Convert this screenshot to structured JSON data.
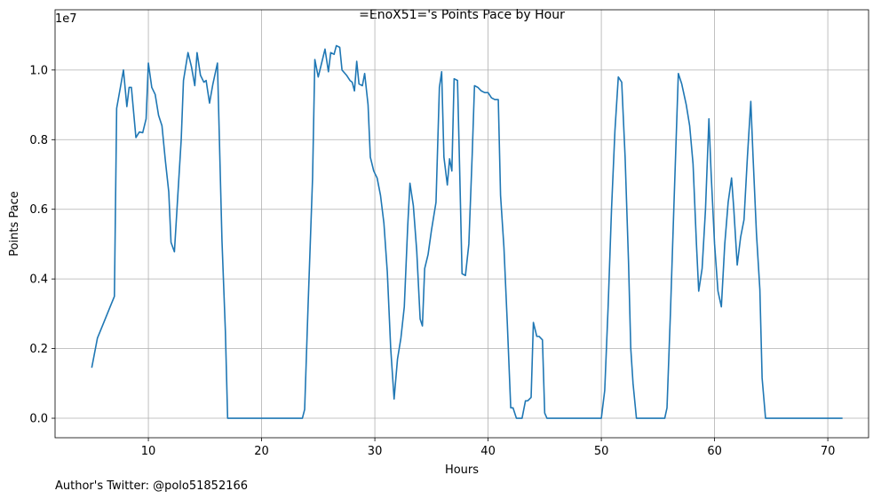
{
  "chart_data": {
    "type": "line",
    "title": "=EnoX51='s Points Pace by Hour",
    "x_label": "Hours",
    "y_label": "Points Pace",
    "y_offset_label": "1e7",
    "caption": "Author's Twitter: @polo51852166",
    "color": "#1f77b4",
    "grid": true,
    "xlim": [
      1.76,
      73.6
    ],
    "xticks": [
      10,
      20,
      30,
      40,
      50,
      60,
      70
    ],
    "ylim": [
      -0.056,
      1.173
    ],
    "yticks": [
      {
        "value": 0,
        "label": "0.0"
      },
      0.2,
      0.4,
      0.6,
      0.8,
      {
        "value": 1,
        "label": "1.0"
      }
    ],
    "x": [
      5.0,
      5.5,
      6.0,
      6.5,
      7.0,
      7.2,
      7.8,
      8.1,
      8.3,
      8.5,
      8.9,
      9.2,
      9.5,
      9.8,
      10.0,
      10.3,
      10.6,
      10.9,
      11.2,
      11.5,
      11.8,
      12.0,
      12.3,
      12.6,
      12.9,
      13.1,
      13.5,
      13.8,
      14.1,
      14.3,
      14.6,
      14.9,
      15.1,
      15.4,
      15.7,
      16.1,
      16.5,
      16.8,
      17.0,
      23.6,
      23.8,
      24.1,
      24.5,
      24.7,
      25.0,
      25.3,
      25.6,
      25.9,
      26.1,
      26.4,
      26.6,
      26.9,
      27.1,
      27.5,
      27.8,
      28.0,
      28.2,
      28.4,
      28.6,
      28.9,
      29.1,
      29.4,
      29.6,
      29.9,
      30.2,
      30.5,
      30.8,
      31.1,
      31.4,
      31.7,
      32.0,
      32.3,
      32.6,
      32.9,
      33.1,
      33.4,
      33.7,
      34.0,
      34.2,
      34.4,
      34.7,
      35.0,
      35.4,
      35.7,
      35.9,
      36.1,
      36.4,
      36.6,
      36.8,
      37.0,
      37.3,
      37.5,
      37.7,
      38.0,
      38.3,
      38.6,
      38.8,
      39.1,
      39.4,
      39.7,
      40.0,
      40.3,
      40.6,
      40.9,
      41.1,
      41.4,
      41.7,
      42.0,
      42.2,
      42.5,
      43.0,
      43.3,
      43.5,
      43.8,
      44.0,
      44.3,
      44.5,
      44.8,
      45.0,
      45.2,
      50.0,
      50.3,
      50.6,
      50.9,
      51.2,
      51.5,
      51.8,
      52.1,
      52.4,
      52.6,
      52.8,
      53.1,
      55.6,
      55.8,
      56.1,
      56.4,
      56.8,
      57.1,
      57.5,
      57.8,
      58.1,
      58.4,
      58.6,
      58.9,
      59.2,
      59.5,
      59.7,
      60.0,
      60.3,
      60.6,
      60.9,
      61.2,
      61.5,
      61.7,
      62.0,
      62.3,
      62.6,
      62.9,
      63.2,
      63.4,
      63.7,
      64.0,
      64.2,
      64.5,
      71.3
    ],
    "values": [
      0.145,
      0.23,
      0.27,
      0.31,
      0.35,
      0.89,
      1.0,
      0.895,
      0.95,
      0.95,
      0.806,
      0.822,
      0.82,
      0.86,
      1.02,
      0.95,
      0.93,
      0.87,
      0.84,
      0.74,
      0.65,
      0.505,
      0.478,
      0.64,
      0.8,
      0.97,
      1.05,
      1.01,
      0.955,
      1.05,
      0.985,
      0.965,
      0.97,
      0.905,
      0.96,
      1.02,
      0.51,
      0.25,
      0.0,
      0.0,
      0.025,
      0.32,
      0.69,
      1.03,
      0.98,
      1.02,
      1.06,
      0.995,
      1.05,
      1.045,
      1.07,
      1.065,
      1.0,
      0.985,
      0.97,
      0.965,
      0.94,
      1.025,
      0.96,
      0.955,
      0.99,
      0.9,
      0.75,
      0.71,
      0.69,
      0.64,
      0.56,
      0.42,
      0.2,
      0.055,
      0.17,
      0.23,
      0.32,
      0.55,
      0.675,
      0.61,
      0.48,
      0.285,
      0.265,
      0.43,
      0.47,
      0.54,
      0.62,
      0.95,
      0.995,
      0.75,
      0.67,
      0.745,
      0.71,
      0.975,
      0.97,
      0.7,
      0.415,
      0.41,
      0.5,
      0.76,
      0.955,
      0.95,
      0.94,
      0.935,
      0.935,
      0.92,
      0.915,
      0.915,
      0.64,
      0.49,
      0.27,
      0.03,
      0.03,
      0.0,
      0.0,
      0.05,
      0.05,
      0.06,
      0.275,
      0.235,
      0.235,
      0.225,
      0.015,
      0.0,
      0.0,
      0.08,
      0.32,
      0.6,
      0.825,
      0.98,
      0.965,
      0.75,
      0.45,
      0.2,
      0.1,
      0.0,
      0.0,
      0.03,
      0.3,
      0.6,
      0.99,
      0.96,
      0.9,
      0.84,
      0.73,
      0.5,
      0.365,
      0.43,
      0.6,
      0.86,
      0.7,
      0.5,
      0.365,
      0.32,
      0.5,
      0.62,
      0.69,
      0.6,
      0.44,
      0.52,
      0.57,
      0.75,
      0.91,
      0.75,
      0.53,
      0.37,
      0.115,
      0.0,
      0.0
    ]
  }
}
